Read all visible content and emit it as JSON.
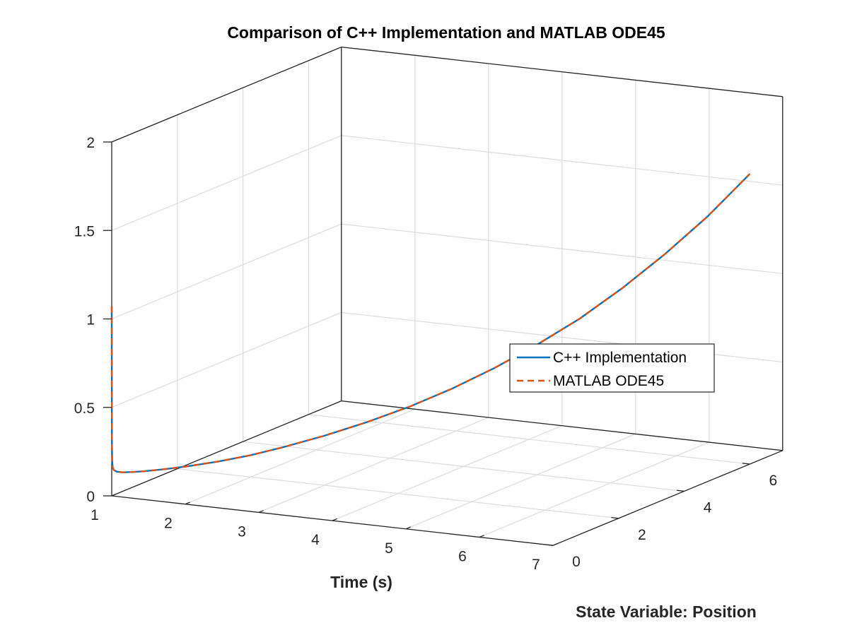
{
  "chart_data": {
    "type": "line",
    "view": "3d",
    "title": "Comparison of C++ Implementation and MATLAB ODE45",
    "xlabel": "Time (s)",
    "ylabel": "State Variable: Position",
    "zlabel": "",
    "xlim": [
      1,
      7
    ],
    "ylim": [
      0,
      7
    ],
    "zlim": [
      0,
      2
    ],
    "xticks": [
      "1",
      "2",
      "3",
      "4",
      "5",
      "6",
      "7"
    ],
    "yticks": [
      "0",
      "2",
      "4",
      "6"
    ],
    "zticks": [
      "0",
      "0.5",
      "1",
      "1.5",
      "2"
    ],
    "grid": true,
    "legend_position": "right",
    "series": [
      {
        "name": "C++ Implementation",
        "color": "#0072BD",
        "style": "solid",
        "x": [
          1,
          1.0005,
          1.001,
          1.002,
          1.004,
          1.006,
          1.01,
          1.02,
          1.05,
          1.1,
          1.2,
          1.3,
          1.5,
          1.7,
          2.0,
          2.3,
          2.6,
          3.0,
          3.4,
          3.8,
          4.2,
          4.6,
          5.0,
          5.4,
          5.8,
          6.2,
          6.6,
          7.0
        ],
        "y": [
          0,
          0.0005,
          0.001,
          0.002,
          0.004,
          0.006,
          0.01,
          0.02,
          0.05,
          0.1,
          0.2,
          0.3,
          0.5,
          0.7,
          1.0,
          1.3,
          1.6,
          2.0,
          2.4,
          2.8,
          3.2,
          3.6,
          4.0,
          4.4,
          4.8,
          5.2,
          5.6,
          6.0
        ],
        "z": [
          1.07,
          0.7,
          0.45,
          0.3,
          0.21,
          0.18,
          0.16,
          0.145,
          0.135,
          0.13,
          0.129,
          0.13,
          0.136,
          0.145,
          0.164,
          0.19,
          0.225,
          0.28,
          0.345,
          0.42,
          0.51,
          0.615,
          0.735,
          0.87,
          1.03,
          1.21,
          1.41,
          1.64
        ]
      },
      {
        "name": "MATLAB ODE45",
        "color": "#D95319",
        "style": "dashed",
        "x": [
          1,
          1.0005,
          1.001,
          1.002,
          1.004,
          1.006,
          1.01,
          1.02,
          1.05,
          1.1,
          1.2,
          1.3,
          1.5,
          1.7,
          2.0,
          2.3,
          2.6,
          3.0,
          3.4,
          3.8,
          4.2,
          4.6,
          5.0,
          5.4,
          5.8,
          6.2,
          6.6,
          7.0
        ],
        "y": [
          0,
          0.0005,
          0.001,
          0.002,
          0.004,
          0.006,
          0.01,
          0.02,
          0.05,
          0.1,
          0.2,
          0.3,
          0.5,
          0.7,
          1.0,
          1.3,
          1.6,
          2.0,
          2.4,
          2.8,
          3.2,
          3.6,
          4.0,
          4.4,
          4.8,
          5.2,
          5.6,
          6.0
        ],
        "z": [
          1.07,
          0.7,
          0.45,
          0.3,
          0.21,
          0.18,
          0.16,
          0.145,
          0.135,
          0.13,
          0.129,
          0.13,
          0.136,
          0.145,
          0.164,
          0.19,
          0.225,
          0.28,
          0.345,
          0.42,
          0.51,
          0.615,
          0.735,
          0.87,
          1.03,
          1.21,
          1.41,
          1.64
        ]
      }
    ]
  }
}
